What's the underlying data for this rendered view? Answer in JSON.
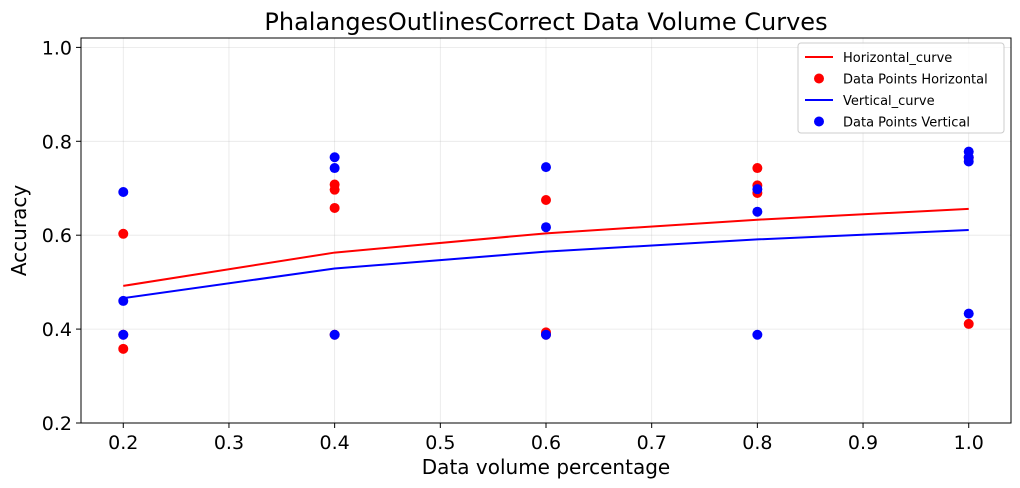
{
  "chart_data": {
    "type": "line+scatter",
    "title": "PhalangesOutlinesCorrect Data Volume Curves",
    "xlabel": "Data volume percentage",
    "ylabel": "Accuracy",
    "xlim": [
      0.16,
      1.04
    ],
    "ylim": [
      0.2,
      1.02
    ],
    "xticks": [
      0.2,
      0.3,
      0.4,
      0.5,
      0.6,
      0.7,
      0.8,
      0.9,
      1.0
    ],
    "xtick_labels": [
      "0.2",
      "0.3",
      "0.4",
      "0.5",
      "0.6",
      "0.7",
      "0.8",
      "0.9",
      "1.0"
    ],
    "yticks": [
      0.2,
      0.4,
      0.6,
      0.8,
      1.0
    ],
    "ytick_labels": [
      "0.2",
      "0.4",
      "0.6",
      "0.8",
      "1.0"
    ],
    "grid": true,
    "legend_position": "top-right",
    "series": [
      {
        "name": "Horizontal_curve",
        "kind": "line",
        "color": "#ff0000",
        "x": [
          0.2,
          0.4,
          0.6,
          0.8,
          1.0
        ],
        "y": [
          0.492,
          0.563,
          0.604,
          0.633,
          0.656
        ]
      },
      {
        "name": "Data Points Horizontal",
        "kind": "scatter",
        "color": "#ff0000",
        "points": [
          [
            0.2,
            0.603
          ],
          [
            0.2,
            0.358
          ],
          [
            0.2,
            0.388
          ],
          [
            0.4,
            0.708
          ],
          [
            0.4,
            0.697
          ],
          [
            0.4,
            0.658
          ],
          [
            0.4,
            0.388
          ],
          [
            0.6,
            0.675
          ],
          [
            0.6,
            0.393
          ],
          [
            0.6,
            0.388
          ],
          [
            0.8,
            0.743
          ],
          [
            0.8,
            0.706
          ],
          [
            0.8,
            0.69
          ],
          [
            1.0,
            0.411
          ],
          [
            1.0,
            0.765
          ]
        ]
      },
      {
        "name": "Vertical_curve",
        "kind": "line",
        "color": "#0000ff",
        "x": [
          0.2,
          0.4,
          0.6,
          0.8,
          1.0
        ],
        "y": [
          0.466,
          0.529,
          0.565,
          0.591,
          0.611
        ]
      },
      {
        "name": "Data Points Vertical",
        "kind": "scatter",
        "color": "#0000ff",
        "points": [
          [
            0.2,
            0.692
          ],
          [
            0.2,
            0.46
          ],
          [
            0.2,
            0.388
          ],
          [
            0.4,
            0.766
          ],
          [
            0.4,
            0.743
          ],
          [
            0.4,
            0.388
          ],
          [
            0.6,
            0.745
          ],
          [
            0.6,
            0.617
          ],
          [
            0.6,
            0.388
          ],
          [
            0.8,
            0.698
          ],
          [
            0.8,
            0.65
          ],
          [
            0.8,
            0.388
          ],
          [
            1.0,
            0.778
          ],
          [
            1.0,
            0.766
          ],
          [
            1.0,
            0.757
          ],
          [
            1.0,
            0.433
          ]
        ]
      }
    ]
  }
}
